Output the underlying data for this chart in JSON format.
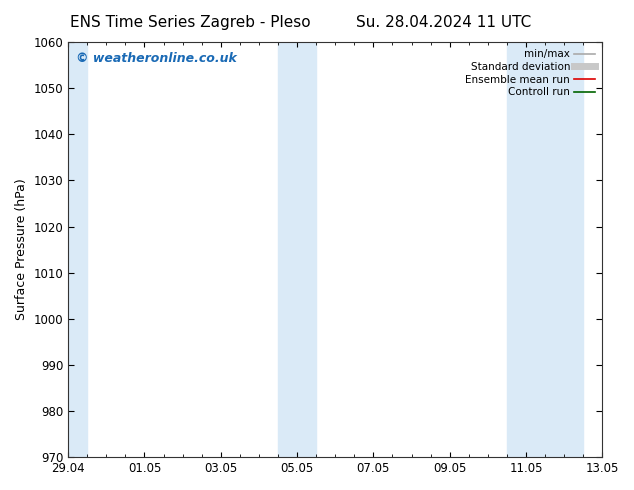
{
  "title_left": "ENS Time Series Zagreb - Pleso",
  "title_right": "Su. 28.04.2024 11 UTC",
  "ylabel": "Surface Pressure (hPa)",
  "ylim": [
    970,
    1060
  ],
  "yticks": [
    970,
    980,
    990,
    1000,
    1010,
    1020,
    1030,
    1040,
    1050,
    1060
  ],
  "xtick_labels": [
    "29.04",
    "01.05",
    "03.05",
    "05.05",
    "07.05",
    "09.05",
    "11.05",
    "13.05"
  ],
  "xtick_positions": [
    0,
    2,
    4,
    6,
    8,
    10,
    12,
    14
  ],
  "x_num_days": 14,
  "shaded_bands": [
    {
      "x_start": 0.0,
      "x_end": 0.5
    },
    {
      "x_start": 5.5,
      "x_end": 6.5
    },
    {
      "x_start": 11.5,
      "x_end": 12.5
    },
    {
      "x_start": 12.5,
      "x_end": 13.5
    }
  ],
  "shade_color": "#daeaf7",
  "background_color": "#ffffff",
  "watermark_text": "© weatheronline.co.uk",
  "watermark_color": "#1a6ab5",
  "legend_entries": [
    {
      "label": "min/max",
      "color": "#aaaaaa",
      "lw": 1.2,
      "ls": "-"
    },
    {
      "label": "Standard deviation",
      "color": "#c8c8c8",
      "lw": 5,
      "ls": "-"
    },
    {
      "label": "Ensemble mean run",
      "color": "#dd0000",
      "lw": 1.2,
      "ls": "-"
    },
    {
      "label": "Controll run",
      "color": "#006400",
      "lw": 1.2,
      "ls": "-"
    }
  ],
  "title_fontsize": 11,
  "axis_fontsize": 9,
  "tick_fontsize": 8.5,
  "watermark_fontsize": 9,
  "legend_fontsize": 7.5,
  "figsize": [
    6.34,
    4.9
  ],
  "dpi": 100
}
